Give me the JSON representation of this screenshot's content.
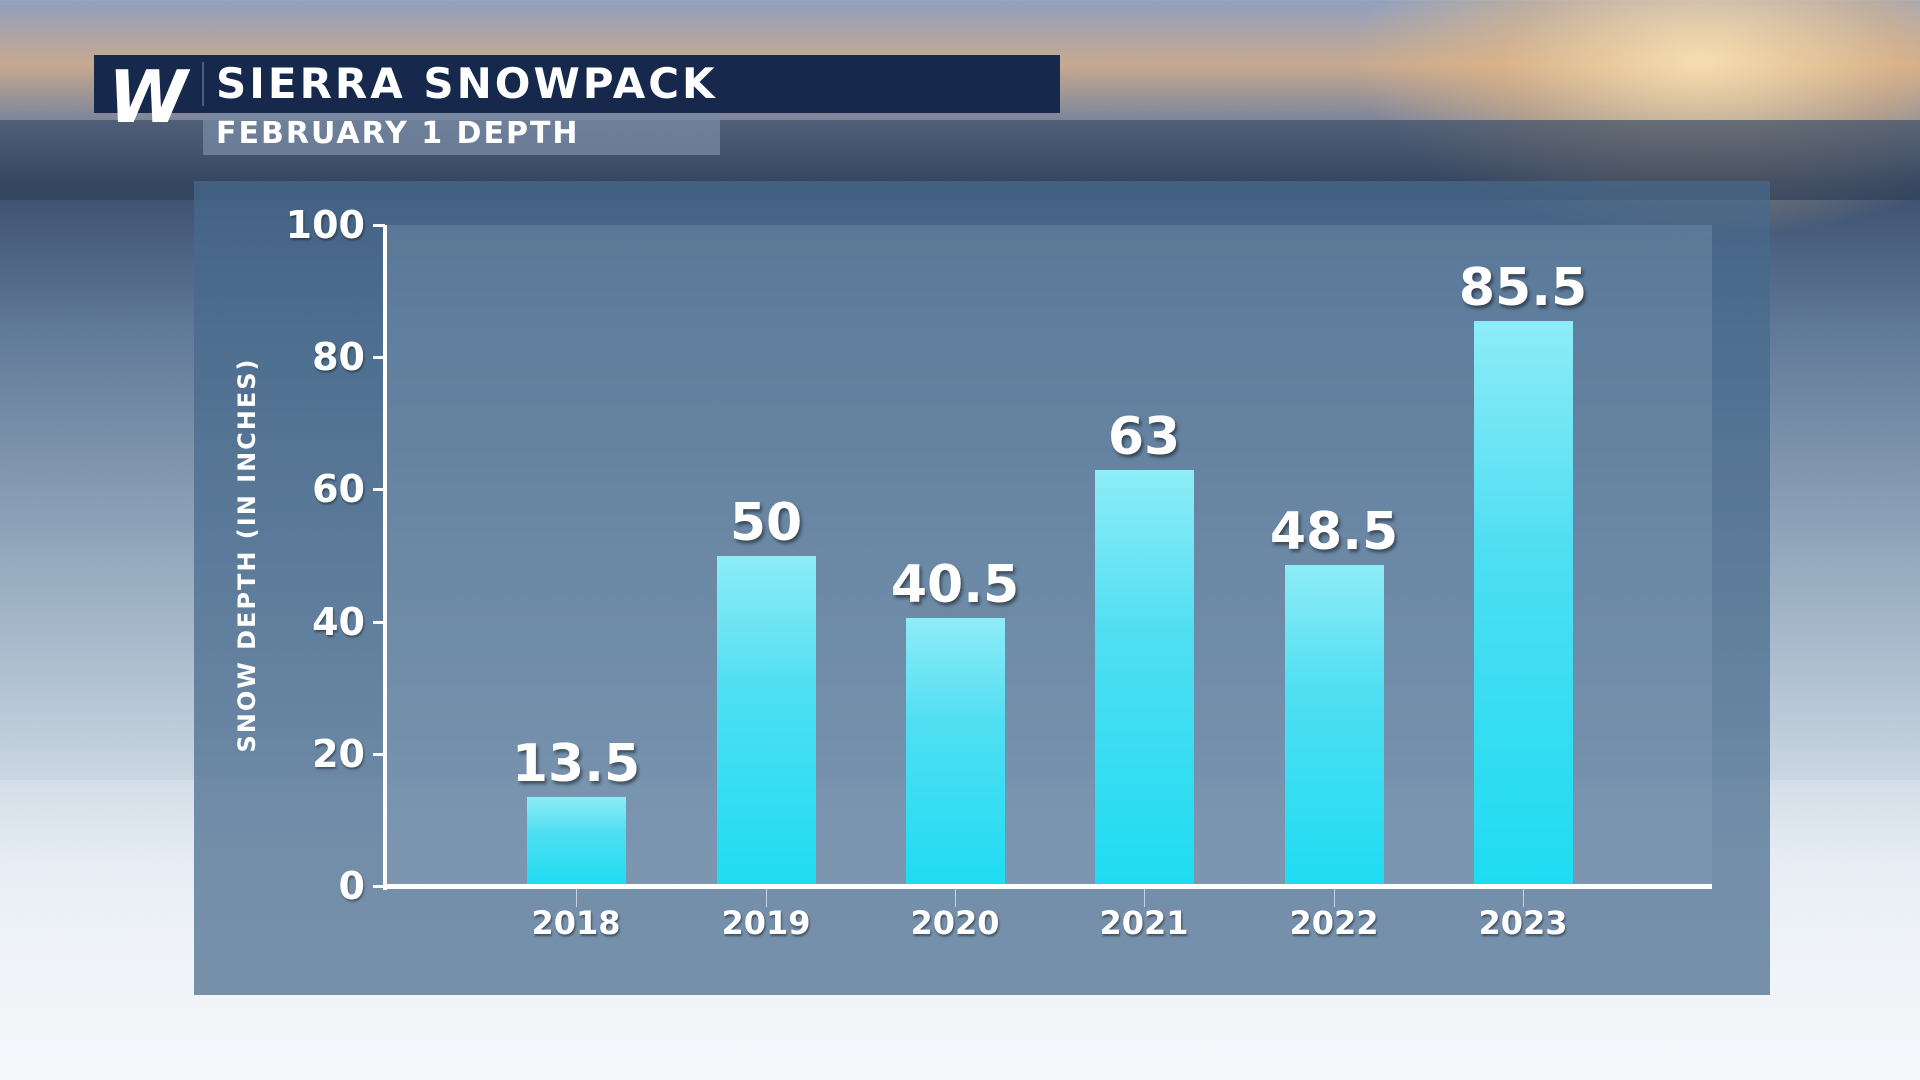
{
  "header": {
    "logo": "W",
    "title": "SIERRA SNOWPACK",
    "subtitle": "FEBRUARY 1 DEPTH"
  },
  "chart_data": {
    "type": "bar",
    "title": "SIERRA SNOWPACK",
    "subtitle": "FEBRUARY 1 DEPTH",
    "xlabel": "",
    "ylabel": "SNOW DEPTH (IN INCHES)",
    "categories": [
      "2018",
      "2019",
      "2020",
      "2021",
      "2022",
      "2023"
    ],
    "values": [
      13.5,
      50,
      40.5,
      63,
      48.5,
      85.5
    ],
    "value_labels": [
      "13.5",
      "50",
      "40.5",
      "63",
      "48.5",
      "85.5"
    ],
    "yticks": [
      "0",
      "20",
      "40",
      "60",
      "80",
      "100"
    ],
    "ylim": [
      0,
      100
    ],
    "grid": false,
    "legend": null,
    "bar_color": "#1fdcf2"
  }
}
